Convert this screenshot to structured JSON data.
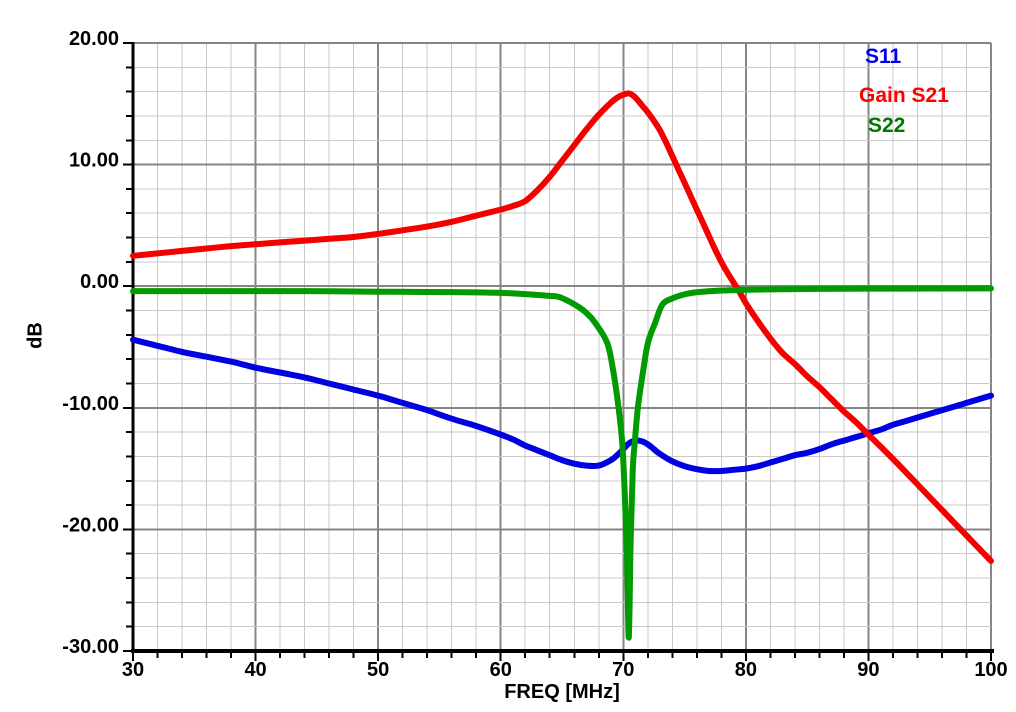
{
  "chart_data": {
    "type": "line",
    "title": "",
    "xlabel": "FREQ [MHz]",
    "ylabel": "dB",
    "xlim": [
      30,
      100
    ],
    "ylim": [
      -30,
      20
    ],
    "x_major_ticks": [
      30,
      40,
      50,
      60,
      70,
      80,
      90,
      100
    ],
    "x_tick_labels": [
      "30",
      "40",
      "50",
      "60",
      "70",
      "80",
      "90",
      "100"
    ],
    "x_minor_step": 2,
    "y_major_ticks": [
      20,
      10,
      0,
      -10,
      -20,
      -30
    ],
    "y_tick_labels": [
      "20.00",
      "10.00",
      "0.00",
      "-10.00",
      "-20.00",
      "-30.00"
    ],
    "y_minor_step": 2,
    "grid": {
      "enabled": true,
      "major_color": "#858585",
      "minor_color": "#c9c9c9"
    },
    "axis_color": "#000000",
    "background": "#ffffff",
    "legend": {
      "position": "top-right",
      "entries": [
        {
          "label": "S11",
          "color": "#0000ee"
        },
        {
          "label": "Gain S21",
          "color": "#ff0000"
        },
        {
          "label": "S22",
          "color": "#007700"
        }
      ]
    },
    "series": [
      {
        "name": "S11",
        "color": "#0000e0",
        "points": [
          [
            30,
            -4.4
          ],
          [
            32,
            -4.9
          ],
          [
            34,
            -5.4
          ],
          [
            36,
            -5.8
          ],
          [
            38,
            -6.2
          ],
          [
            40,
            -6.7
          ],
          [
            42,
            -7.1
          ],
          [
            44,
            -7.5
          ],
          [
            46,
            -8.0
          ],
          [
            48,
            -8.5
          ],
          [
            50,
            -9.0
          ],
          [
            52,
            -9.6
          ],
          [
            54,
            -10.2
          ],
          [
            56,
            -10.9
          ],
          [
            58,
            -11.5
          ],
          [
            60,
            -12.2
          ],
          [
            61,
            -12.6
          ],
          [
            62,
            -13.1
          ],
          [
            63,
            -13.5
          ],
          [
            64,
            -13.9
          ],
          [
            65,
            -14.3
          ],
          [
            66,
            -14.6
          ],
          [
            67,
            -14.75
          ],
          [
            68,
            -14.75
          ],
          [
            69,
            -14.3
          ],
          [
            69.5,
            -13.9
          ],
          [
            70,
            -13.4
          ],
          [
            70.5,
            -12.9
          ],
          [
            71,
            -12.7
          ],
          [
            71.5,
            -12.75
          ],
          [
            72,
            -13.0
          ],
          [
            72.5,
            -13.4
          ],
          [
            73,
            -13.8
          ],
          [
            74,
            -14.4
          ],
          [
            75,
            -14.8
          ],
          [
            76,
            -15.05
          ],
          [
            77,
            -15.2
          ],
          [
            78,
            -15.2
          ],
          [
            79,
            -15.1
          ],
          [
            80,
            -15.0
          ],
          [
            81,
            -14.8
          ],
          [
            82,
            -14.5
          ],
          [
            83,
            -14.2
          ],
          [
            84,
            -13.9
          ],
          [
            85,
            -13.7
          ],
          [
            86,
            -13.4
          ],
          [
            87,
            -13.0
          ],
          [
            88,
            -12.7
          ],
          [
            89,
            -12.4
          ],
          [
            90,
            -12.1
          ],
          [
            91,
            -11.8
          ],
          [
            92,
            -11.4
          ],
          [
            93,
            -11.1
          ],
          [
            94,
            -10.8
          ],
          [
            95,
            -10.5
          ],
          [
            96,
            -10.2
          ],
          [
            97,
            -9.9
          ],
          [
            98,
            -9.6
          ],
          [
            99,
            -9.3
          ],
          [
            100,
            -9.0
          ]
        ]
      },
      {
        "name": "Gain S21",
        "color": "#f40000",
        "points": [
          [
            30,
            2.5
          ],
          [
            32,
            2.7
          ],
          [
            34,
            2.9
          ],
          [
            36,
            3.1
          ],
          [
            38,
            3.3
          ],
          [
            40,
            3.45
          ],
          [
            42,
            3.6
          ],
          [
            44,
            3.75
          ],
          [
            46,
            3.9
          ],
          [
            48,
            4.05
          ],
          [
            50,
            4.3
          ],
          [
            52,
            4.6
          ],
          [
            54,
            4.9
          ],
          [
            56,
            5.3
          ],
          [
            58,
            5.8
          ],
          [
            60,
            6.3
          ],
          [
            61,
            6.6
          ],
          [
            62,
            7.0
          ],
          [
            63,
            7.9
          ],
          [
            64,
            9.0
          ],
          [
            65,
            10.3
          ],
          [
            66,
            11.6
          ],
          [
            67,
            12.9
          ],
          [
            68,
            14.1
          ],
          [
            69,
            15.1
          ],
          [
            69.5,
            15.5
          ],
          [
            70,
            15.75
          ],
          [
            70.5,
            15.85
          ],
          [
            71,
            15.5
          ],
          [
            71.5,
            14.9
          ],
          [
            72,
            14.3
          ],
          [
            72.5,
            13.6
          ],
          [
            73,
            12.8
          ],
          [
            73.5,
            11.8
          ],
          [
            74,
            10.7
          ],
          [
            74.5,
            9.6
          ],
          [
            75,
            8.5
          ],
          [
            75.5,
            7.4
          ],
          [
            76,
            6.3
          ],
          [
            76.5,
            5.2
          ],
          [
            77,
            4.1
          ],
          [
            77.5,
            3.0
          ],
          [
            78,
            2.0
          ],
          [
            78.5,
            1.1
          ],
          [
            79,
            0.3
          ],
          [
            79.5,
            -0.5
          ],
          [
            80,
            -1.4
          ],
          [
            81,
            -2.9
          ],
          [
            82,
            -4.3
          ],
          [
            83,
            -5.5
          ],
          [
            84,
            -6.4
          ],
          [
            85,
            -7.4
          ],
          [
            86,
            -8.3
          ],
          [
            87,
            -9.3
          ],
          [
            88,
            -10.3
          ],
          [
            89,
            -11.2
          ],
          [
            90,
            -12.2
          ],
          [
            92,
            -14.2
          ],
          [
            94,
            -16.3
          ],
          [
            96,
            -18.4
          ],
          [
            98,
            -20.5
          ],
          [
            100,
            -22.6
          ]
        ]
      },
      {
        "name": "S22",
        "color": "#009b00",
        "points": [
          [
            30,
            -0.4
          ],
          [
            34,
            -0.4
          ],
          [
            38,
            -0.4
          ],
          [
            42,
            -0.4
          ],
          [
            46,
            -0.42
          ],
          [
            50,
            -0.45
          ],
          [
            54,
            -0.48
          ],
          [
            57,
            -0.5
          ],
          [
            60,
            -0.55
          ],
          [
            62,
            -0.65
          ],
          [
            63,
            -0.72
          ],
          [
            64,
            -0.8
          ],
          [
            64.8,
            -0.9
          ],
          [
            66.1,
            -1.55
          ],
          [
            67,
            -2.2
          ],
          [
            67.7,
            -3.0
          ],
          [
            68.7,
            -4.7
          ],
          [
            69.2,
            -7.1
          ],
          [
            69.6,
            -9.9
          ],
          [
            69.9,
            -12.7
          ],
          [
            70.1,
            -16.5
          ],
          [
            70.3,
            -22.0
          ],
          [
            70.45,
            -28.9
          ],
          [
            70.6,
            -21.0
          ],
          [
            70.78,
            -15.0
          ],
          [
            70.95,
            -12.7
          ],
          [
            71.2,
            -9.9
          ],
          [
            71.6,
            -7.1
          ],
          [
            72,
            -4.7
          ],
          [
            72.6,
            -3.0
          ],
          [
            73.2,
            -1.5
          ],
          [
            74,
            -1.0
          ],
          [
            74.8,
            -0.72
          ],
          [
            75.6,
            -0.55
          ],
          [
            76.5,
            -0.45
          ],
          [
            78,
            -0.35
          ],
          [
            80,
            -0.3
          ],
          [
            83,
            -0.25
          ],
          [
            86,
            -0.22
          ],
          [
            90,
            -0.2
          ],
          [
            95,
            -0.19
          ],
          [
            100,
            -0.18
          ]
        ]
      }
    ]
  }
}
